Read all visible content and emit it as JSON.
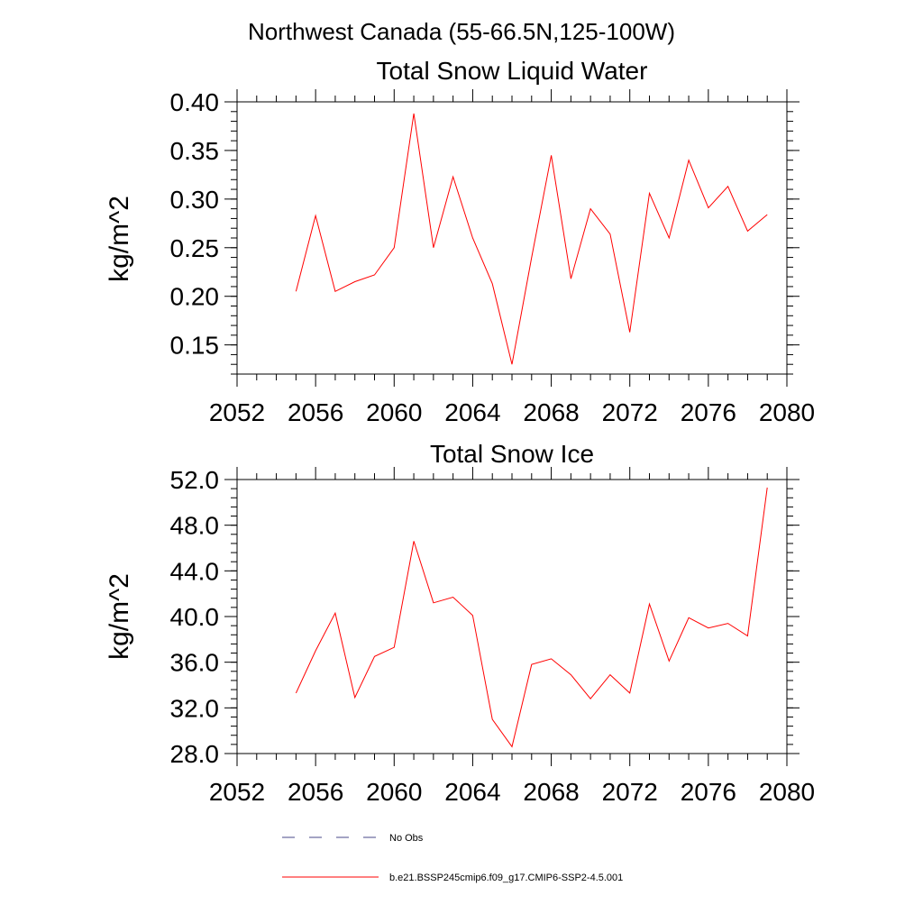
{
  "figure": {
    "suptitle": "Northwest Canada (55-66.5N,125-100W)"
  },
  "chart_data": [
    {
      "type": "line",
      "title": "Total Snow Liquid Water",
      "xlabel": "",
      "ylabel": "kg/m^2",
      "xlim": [
        2052,
        2080
      ],
      "ylim": [
        0.12,
        0.4
      ],
      "x_ticks": [
        2052,
        2056,
        2060,
        2064,
        2068,
        2072,
        2076,
        2080
      ],
      "x_tick_labels": [
        "2052",
        "2056",
        "2060",
        "2064",
        "2068",
        "2072",
        "2076",
        "2080"
      ],
      "y_ticks": [
        0.15,
        0.2,
        0.25,
        0.3,
        0.35,
        0.4
      ],
      "y_tick_labels": [
        "0.15",
        "0.20",
        "0.25",
        "0.30",
        "0.35",
        "0.40"
      ],
      "grid": false,
      "series": [
        {
          "name": "b.e21.BSSP245cmip6.f09_g17.CMIP6-SSP2-4.5.001",
          "color": "#ff0000",
          "x": [
            2055,
            2056,
            2057,
            2058,
            2059,
            2060,
            2061,
            2062,
            2063,
            2064,
            2065,
            2066,
            2067,
            2068,
            2069,
            2070,
            2071,
            2072,
            2073,
            2074,
            2075,
            2076,
            2077,
            2078,
            2079
          ],
          "y": [
            0.205,
            0.283,
            0.205,
            0.215,
            0.222,
            0.25,
            0.388,
            0.25,
            0.323,
            0.26,
            0.213,
            0.13,
            0.24,
            0.345,
            0.218,
            0.29,
            0.264,
            0.163,
            0.306,
            0.26,
            0.34,
            0.291,
            0.313,
            0.267,
            0.284
          ]
        }
      ]
    },
    {
      "type": "line",
      "title": "Total Snow Ice",
      "xlabel": "",
      "ylabel": "kg/m^2",
      "xlim": [
        2052,
        2080
      ],
      "ylim": [
        28.0,
        52.0
      ],
      "x_ticks": [
        2052,
        2056,
        2060,
        2064,
        2068,
        2072,
        2076,
        2080
      ],
      "x_tick_labels": [
        "2052",
        "2056",
        "2060",
        "2064",
        "2068",
        "2072",
        "2076",
        "2080"
      ],
      "y_ticks": [
        28,
        32,
        36,
        40,
        44,
        48,
        52
      ],
      "y_tick_labels": [
        "28.0",
        "32.0",
        "36.0",
        "40.0",
        "44.0",
        "48.0",
        "52.0"
      ],
      "grid": false,
      "series": [
        {
          "name": "b.e21.BSSP245cmip6.f09_g17.CMIP6-SSP2-4.5.001",
          "color": "#ff0000",
          "x": [
            2055,
            2056,
            2057,
            2058,
            2059,
            2060,
            2061,
            2062,
            2063,
            2064,
            2065,
            2066,
            2067,
            2068,
            2069,
            2070,
            2071,
            2072,
            2073,
            2074,
            2075,
            2076,
            2077,
            2078,
            2079
          ],
          "y": [
            33.3,
            37.0,
            40.3,
            32.9,
            36.5,
            37.3,
            46.6,
            41.2,
            41.7,
            40.1,
            31.0,
            28.6,
            35.8,
            36.3,
            34.9,
            32.8,
            34.9,
            33.3,
            41.1,
            36.1,
            39.9,
            39.0,
            39.4,
            38.3,
            51.3
          ]
        }
      ]
    }
  ],
  "legend": {
    "placement": "bottom",
    "entries": [
      {
        "label": "No Obs",
        "color": "#4a4a8a",
        "style": "dashed"
      },
      {
        "label": "b.e21.BSSP245cmip6.f09_g17.CMIP6-SSP2-4.5.001",
        "color": "#ff0000",
        "style": "solid"
      }
    ]
  }
}
